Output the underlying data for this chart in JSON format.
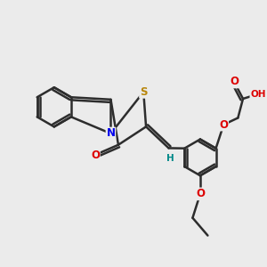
{
  "bg_color": "#ebebeb",
  "bond_color": "#2d2d2d",
  "bond_width": 1.8,
  "atom_colors": {
    "N": "#0000ee",
    "S": "#b8860b",
    "O": "#dd0000",
    "H": "#008888",
    "C": "#2d2d2d"
  },
  "font_size": 8.5
}
